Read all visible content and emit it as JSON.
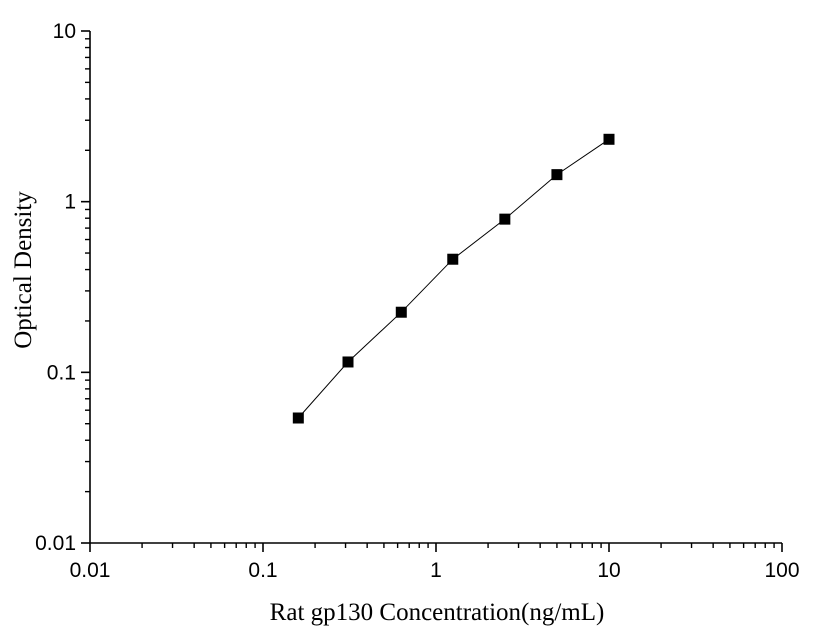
{
  "chart_data": {
    "type": "scatter",
    "title": "",
    "xlabel": "Rat gp130 Concentration(ng/mL)",
    "ylabel": "Optical Density",
    "xscale": "log",
    "yscale": "log",
    "xlim": [
      0.01,
      100
    ],
    "ylim": [
      0.01,
      10
    ],
    "grid": false,
    "legend": "none",
    "x_ticks": [
      {
        "value": 0.01,
        "label": "0.01"
      },
      {
        "value": 0.1,
        "label": "0.1"
      },
      {
        "value": 1,
        "label": "1"
      },
      {
        "value": 10,
        "label": "10"
      },
      {
        "value": 100,
        "label": "100"
      }
    ],
    "y_ticks": [
      {
        "value": 0.01,
        "label": "0.01"
      },
      {
        "value": 0.1,
        "label": "0.1"
      },
      {
        "value": 1,
        "label": "1"
      },
      {
        "value": 10,
        "label": "10"
      }
    ],
    "series": [
      {
        "x": [
          0.16,
          0.31,
          0.63,
          1.25,
          2.5,
          5,
          10
        ],
        "y": [
          0.054,
          0.115,
          0.225,
          0.46,
          0.79,
          1.44,
          2.32
        ],
        "marker": "square",
        "line": true,
        "color": "#000000"
      }
    ]
  }
}
